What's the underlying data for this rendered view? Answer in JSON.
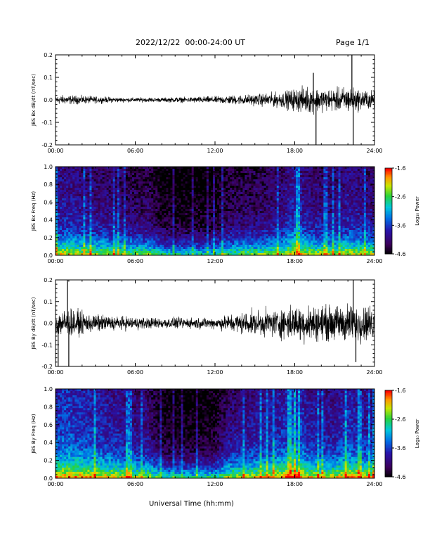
{
  "header": {
    "title": "2022/12/22  00:00-24:00 UT",
    "page": "Page 1/1"
  },
  "footer": {
    "xlabel": "Universal Time (hh:mm)"
  },
  "chart_data": [
    {
      "type": "line",
      "title": "",
      "ylabel": "JBS Bx dB/dt (nT/sec)",
      "xlabel": "",
      "xlim": [
        0,
        24
      ],
      "ylim": [
        -0.2,
        0.2
      ],
      "yticks": [
        "0.2",
        "0.1",
        "0.0",
        "-0.1",
        "-0.2"
      ],
      "xticks": [
        "00:00",
        "06:00",
        "12:00",
        "18:00",
        "24:00"
      ],
      "series": [
        {
          "color": "#000000",
          "noise_envelope": {
            "x": [
              0,
              1,
              2,
              3,
              4,
              5,
              6,
              7,
              8,
              9,
              10,
              11,
              12,
              13,
              14,
              15,
              16,
              17,
              18,
              19,
              20,
              21,
              22,
              23,
              24
            ],
            "amplitude": [
              0.02,
              0.02,
              0.018,
              0.015,
              0.013,
              0.01,
              0.01,
              0.01,
              0.01,
              0.012,
              0.012,
              0.015,
              0.015,
              0.02,
              0.022,
              0.025,
              0.03,
              0.035,
              0.05,
              0.06,
              0.05,
              0.05,
              0.06,
              0.045,
              0.04
            ]
          },
          "spikes": [
            [
              19.6,
              -0.2
            ],
            [
              19.4,
              0.12
            ],
            [
              22.3,
              0.2
            ],
            [
              22.4,
              -0.2
            ]
          ]
        }
      ]
    },
    {
      "type": "heatmap",
      "title": "",
      "ylabel": "JBS Bx Freq (Hz)",
      "xlim": [
        0,
        24
      ],
      "ylim": [
        0,
        1
      ],
      "yticks": [
        "1.0",
        "0.8",
        "0.6",
        "0.4",
        "0.2",
        "0.0"
      ],
      "xticks": [
        "00:00",
        "06:00",
        "12:00",
        "18:00",
        "24:00"
      ],
      "colorbar": {
        "label": "Log₁₀ Power",
        "ticks": [
          "-1.6",
          "-2.6",
          "-3.6",
          "-4.6"
        ],
        "range": [
          -4.6,
          -1.6
        ]
      },
      "activity_profile": {
        "x": [
          0,
          1,
          2,
          3,
          4,
          5,
          6,
          7,
          8,
          9,
          10,
          11,
          12,
          13,
          14,
          15,
          16,
          17,
          18,
          19,
          20,
          21,
          22,
          23,
          24
        ],
        "level": [
          0.55,
          0.55,
          0.5,
          0.45,
          0.45,
          0.4,
          0.35,
          0.35,
          0.15,
          0.12,
          0.12,
          0.12,
          0.15,
          0.3,
          0.35,
          0.35,
          0.4,
          0.45,
          0.65,
          0.5,
          0.45,
          0.45,
          0.55,
          0.5,
          0.45
        ]
      }
    },
    {
      "type": "line",
      "title": "",
      "ylabel": "JBS By dB/dt (nT/sec)",
      "xlim": [
        0,
        24
      ],
      "ylim": [
        -0.2,
        0.2
      ],
      "yticks": [
        "0.2",
        "0.1",
        "0.0",
        "-0.1",
        "-0.2"
      ],
      "xticks": [
        "00:00",
        "06:00",
        "12:00",
        "18:00",
        "24:00"
      ],
      "series": [
        {
          "color": "#000000",
          "noise_envelope": {
            "x": [
              0,
              1,
              2,
              3,
              4,
              5,
              6,
              7,
              8,
              9,
              10,
              11,
              12,
              13,
              14,
              15,
              16,
              17,
              18,
              19,
              20,
              21,
              22,
              23,
              24
            ],
            "amplitude": [
              0.06,
              0.07,
              0.05,
              0.04,
              0.035,
              0.03,
              0.03,
              0.025,
              0.025,
              0.025,
              0.025,
              0.025,
              0.025,
              0.04,
              0.05,
              0.055,
              0.06,
              0.07,
              0.08,
              0.085,
              0.08,
              0.08,
              0.09,
              0.08,
              0.08
            ]
          },
          "spikes": [
            [
              0.2,
              -0.2
            ],
            [
              0.9,
              0.2
            ],
            [
              1.0,
              -0.2
            ],
            [
              22.4,
              0.2
            ],
            [
              22.6,
              -0.18
            ]
          ]
        }
      ]
    },
    {
      "type": "heatmap",
      "title": "",
      "ylabel": "JBS By Freq (Hz)",
      "xlim": [
        0,
        24
      ],
      "ylim": [
        0,
        1
      ],
      "yticks": [
        "1.0",
        "0.8",
        "0.6",
        "0.4",
        "0.2",
        "0.0"
      ],
      "xticks": [
        "00:00",
        "06:00",
        "12:00",
        "18:00",
        "24:00"
      ],
      "colorbar": {
        "label": "Log₁₀ Power",
        "ticks": [
          "-1.6",
          "-2.6",
          "-3.6",
          "-4.6"
        ],
        "range": [
          -4.6,
          -1.6
        ]
      },
      "activity_profile": {
        "x": [
          0,
          1,
          2,
          3,
          4,
          5,
          6,
          7,
          8,
          9,
          10,
          11,
          12,
          13,
          14,
          15,
          16,
          17,
          18,
          19,
          20,
          21,
          22,
          23,
          24
        ],
        "level": [
          0.75,
          0.75,
          0.7,
          0.65,
          0.6,
          0.55,
          0.5,
          0.45,
          0.2,
          0.15,
          0.15,
          0.15,
          0.2,
          0.45,
          0.5,
          0.55,
          0.6,
          0.65,
          0.8,
          0.6,
          0.55,
          0.55,
          0.7,
          0.6,
          0.55
        ]
      }
    }
  ]
}
